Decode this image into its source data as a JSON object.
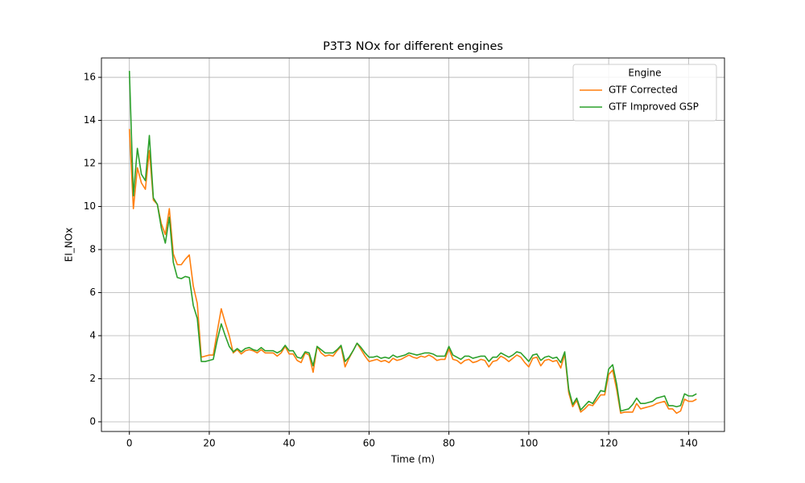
{
  "chart_data": {
    "type": "line",
    "title": "P3T3 NOx for different engines",
    "xlabel": "Time (m)",
    "ylabel": "EI_NOx",
    "legend_title": "Engine",
    "legend": "upper right",
    "grid": true,
    "xlim": [
      -7,
      149
    ],
    "ylim": [
      -0.45,
      16.9
    ],
    "xticks": [
      0,
      20,
      40,
      60,
      80,
      100,
      120,
      140
    ],
    "yticks": [
      0,
      2,
      4,
      6,
      8,
      10,
      12,
      14,
      16
    ],
    "x": [
      0,
      1,
      2,
      3,
      4,
      5,
      6,
      7,
      8,
      9,
      10,
      11,
      12,
      13,
      14,
      15,
      16,
      17,
      18,
      19,
      20,
      21,
      22,
      23,
      24,
      25,
      26,
      27,
      28,
      29,
      30,
      31,
      32,
      33,
      34,
      35,
      36,
      37,
      38,
      39,
      40,
      41,
      42,
      43,
      44,
      45,
      46,
      47,
      48,
      49,
      50,
      51,
      52,
      53,
      54,
      55,
      56,
      57,
      58,
      59,
      60,
      61,
      62,
      63,
      64,
      65,
      66,
      67,
      68,
      69,
      70,
      71,
      72,
      73,
      74,
      75,
      76,
      77,
      78,
      79,
      80,
      81,
      82,
      83,
      84,
      85,
      86,
      87,
      88,
      89,
      90,
      91,
      92,
      93,
      94,
      95,
      96,
      97,
      98,
      99,
      100,
      101,
      102,
      103,
      104,
      105,
      106,
      107,
      108,
      109,
      110,
      111,
      112,
      113,
      114,
      115,
      116,
      117,
      118,
      119,
      120,
      121,
      122,
      123,
      124,
      125,
      126,
      127,
      128,
      129,
      130,
      131,
      132,
      133,
      134,
      135,
      136,
      137,
      138,
      139,
      140,
      141,
      142
    ],
    "series": [
      {
        "name": "GTF Corrected",
        "color": "#ff7f0e",
        "values": [
          13.6,
          9.9,
          11.8,
          11.1,
          10.8,
          12.6,
          10.3,
          10.1,
          9.2,
          8.7,
          9.9,
          7.8,
          7.3,
          7.3,
          7.55,
          7.75,
          6.3,
          5.5,
          3.0,
          3.05,
          3.1,
          3.1,
          4.2,
          5.25,
          4.6,
          4.0,
          3.2,
          3.35,
          3.15,
          3.3,
          3.35,
          3.3,
          3.2,
          3.35,
          3.2,
          3.2,
          3.2,
          3.05,
          3.2,
          3.5,
          3.15,
          3.15,
          2.85,
          2.75,
          3.2,
          3.1,
          2.3,
          3.5,
          3.2,
          3.05,
          3.1,
          3.05,
          3.3,
          3.5,
          2.55,
          2.95,
          3.3,
          3.65,
          3.35,
          3.05,
          2.8,
          2.85,
          2.9,
          2.8,
          2.85,
          2.75,
          2.95,
          2.85,
          2.9,
          3.0,
          3.1,
          3.0,
          2.95,
          3.05,
          3.0,
          3.1,
          3.0,
          2.85,
          2.9,
          2.9,
          3.4,
          2.9,
          2.85,
          2.7,
          2.85,
          2.9,
          2.75,
          2.8,
          2.9,
          2.85,
          2.55,
          2.8,
          2.85,
          3.05,
          2.95,
          2.8,
          2.95,
          3.1,
          3.0,
          2.75,
          2.55,
          2.95,
          3.0,
          2.6,
          2.85,
          2.9,
          2.8,
          2.85,
          2.5,
          3.15,
          1.35,
          0.7,
          1.0,
          0.45,
          0.6,
          0.8,
          0.75,
          1.0,
          1.25,
          1.25,
          2.2,
          2.4,
          1.5,
          0.4,
          0.45,
          0.45,
          0.45,
          0.85,
          0.6,
          0.65,
          0.7,
          0.75,
          0.85,
          0.9,
          0.95,
          0.6,
          0.6,
          0.4,
          0.5,
          1.05,
          0.95,
          0.95,
          1.05
        ]
      },
      {
        "name": "GTF Improved GSP",
        "color": "#2ca02c",
        "values": [
          16.3,
          10.5,
          12.7,
          11.5,
          11.2,
          13.3,
          10.4,
          10.1,
          9.0,
          8.3,
          9.5,
          7.4,
          6.7,
          6.65,
          6.75,
          6.7,
          5.4,
          4.8,
          2.8,
          2.8,
          2.85,
          2.9,
          3.8,
          4.55,
          4.0,
          3.5,
          3.25,
          3.4,
          3.25,
          3.4,
          3.45,
          3.35,
          3.3,
          3.45,
          3.3,
          3.3,
          3.3,
          3.2,
          3.3,
          3.55,
          3.3,
          3.3,
          3.0,
          2.95,
          3.25,
          3.2,
          2.6,
          3.5,
          3.35,
          3.2,
          3.2,
          3.2,
          3.35,
          3.55,
          2.8,
          3.0,
          3.3,
          3.65,
          3.45,
          3.2,
          3.0,
          3.0,
          3.05,
          2.95,
          3.0,
          2.95,
          3.1,
          3.0,
          3.05,
          3.1,
          3.2,
          3.15,
          3.1,
          3.15,
          3.2,
          3.2,
          3.15,
          3.05,
          3.05,
          3.05,
          3.5,
          3.1,
          3.0,
          2.9,
          3.05,
          3.05,
          2.95,
          3.0,
          3.05,
          3.05,
          2.8,
          3.0,
          3.0,
          3.2,
          3.1,
          3.0,
          3.1,
          3.25,
          3.2,
          3.0,
          2.8,
          3.1,
          3.15,
          2.85,
          3.0,
          3.05,
          2.95,
          3.0,
          2.75,
          3.25,
          1.5,
          0.8,
          1.1,
          0.55,
          0.75,
          0.95,
          0.85,
          1.15,
          1.45,
          1.4,
          2.45,
          2.65,
          1.75,
          0.5,
          0.55,
          0.6,
          0.8,
          1.1,
          0.85,
          0.85,
          0.9,
          0.95,
          1.1,
          1.15,
          1.2,
          0.75,
          0.75,
          0.7,
          0.75,
          1.3,
          1.2,
          1.2,
          1.3
        ]
      }
    ]
  }
}
